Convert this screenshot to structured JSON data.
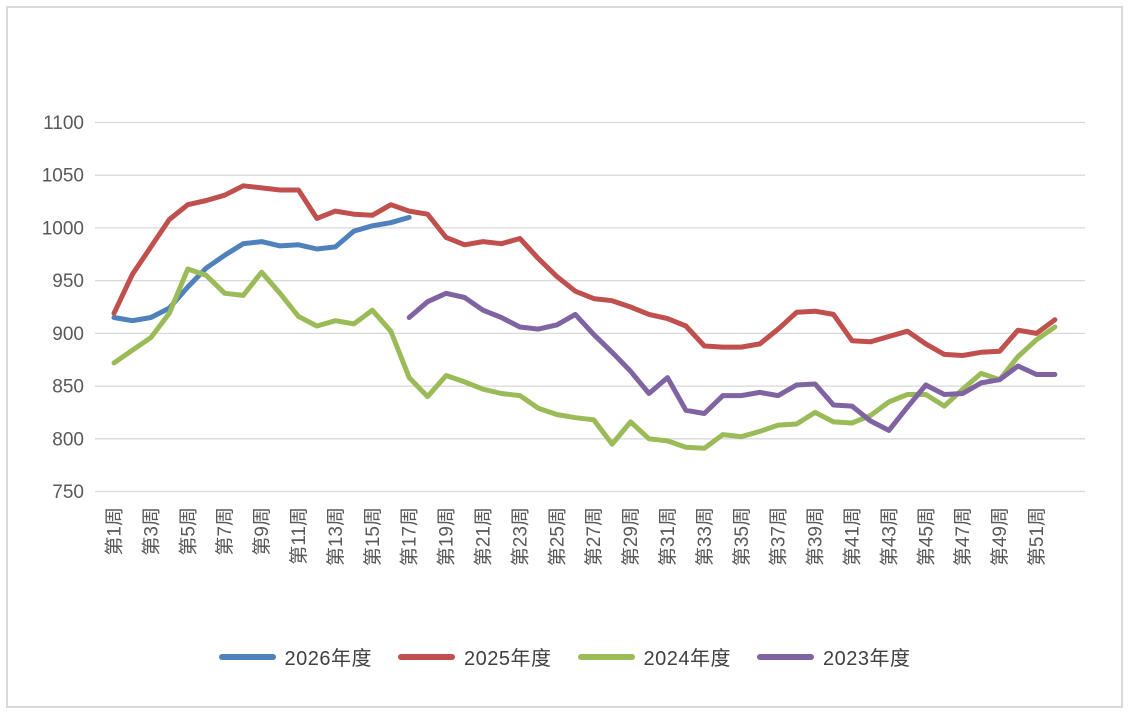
{
  "colors": {
    "background": "#FFFFFF",
    "frame_border": "#D9D9D9",
    "gridline": "#D9D9D9",
    "axis_text": "#595959",
    "legend_text": "#404040",
    "series_blue": "#4F81BD",
    "series_red": "#C0504D",
    "series_green": "#9BBB59",
    "series_purple": "#8064A2"
  },
  "chart_data": {
    "type": "line",
    "title": "",
    "xlabel": "",
    "ylabel": "",
    "grid": true,
    "legend_position": "bottom",
    "y_axis": {
      "min": 750,
      "max": 1100,
      "step": 50,
      "ticks": [
        1100,
        1050,
        1000,
        950,
        900,
        850,
        800,
        750
      ]
    },
    "x_axis": {
      "weeks_total": 52,
      "tick_labels": [
        "第1周",
        "第3周",
        "第5周",
        "第7周",
        "第9周",
        "第11周",
        "第13周",
        "第15周",
        "第17周",
        "第19周",
        "第21周",
        "第23周",
        "第25周",
        "第27周",
        "第29周",
        "第31周",
        "第33周",
        "第35周",
        "第37周",
        "第39周",
        "第41周",
        "第43周",
        "第45周",
        "第47周",
        "第49周",
        "第51周"
      ]
    },
    "series": [
      {
        "name": "2026年度",
        "color": "#4F81BD",
        "start_week": 1,
        "values": [
          915,
          912,
          915,
          924,
          944,
          962,
          974,
          985,
          987,
          983,
          984,
          980,
          982,
          997,
          1002,
          1005,
          1010
        ]
      },
      {
        "name": "2025年度",
        "color": "#C0504D",
        "start_week": 1,
        "values": [
          919,
          956,
          982,
          1008,
          1022,
          1026,
          1031,
          1040,
          1038,
          1036,
          1036,
          1009,
          1016,
          1013,
          1012,
          1022,
          1016,
          1013,
          991,
          984,
          987,
          985,
          990,
          971,
          954,
          940,
          933,
          931,
          925,
          918,
          914,
          907,
          888,
          887,
          887,
          890,
          904,
          920,
          921,
          918,
          893,
          892,
          897,
          902,
          890,
          880,
          879,
          882,
          883,
          903,
          900,
          913
        ]
      },
      {
        "name": "2024年度",
        "color": "#9BBB59",
        "start_week": 1,
        "values": [
          872,
          884,
          896,
          919,
          961,
          955,
          938,
          936,
          958,
          938,
          916,
          907,
          912,
          909,
          922,
          902,
          858,
          840,
          860,
          854,
          847,
          843,
          841,
          829,
          823,
          820,
          818,
          795,
          816,
          800,
          798,
          792,
          791,
          804,
          802,
          807,
          813,
          814,
          825,
          816,
          815,
          822,
          835,
          842,
          842,
          831,
          847,
          862,
          856,
          878,
          894,
          906
        ]
      },
      {
        "name": "2023年度",
        "color": "#8064A2",
        "start_week": 17,
        "values": [
          915,
          930,
          938,
          934,
          922,
          915,
          906,
          904,
          908,
          918,
          899,
          882,
          864,
          843,
          858,
          827,
          824,
          841,
          841,
          844,
          841,
          851,
          852,
          832,
          831,
          817,
          808,
          830,
          851,
          842,
          843,
          853,
          856,
          869,
          861,
          861
        ]
      }
    ]
  },
  "legend": {
    "items": [
      "2026年度",
      "2025年度",
      "2024年度",
      "2023年度"
    ]
  }
}
